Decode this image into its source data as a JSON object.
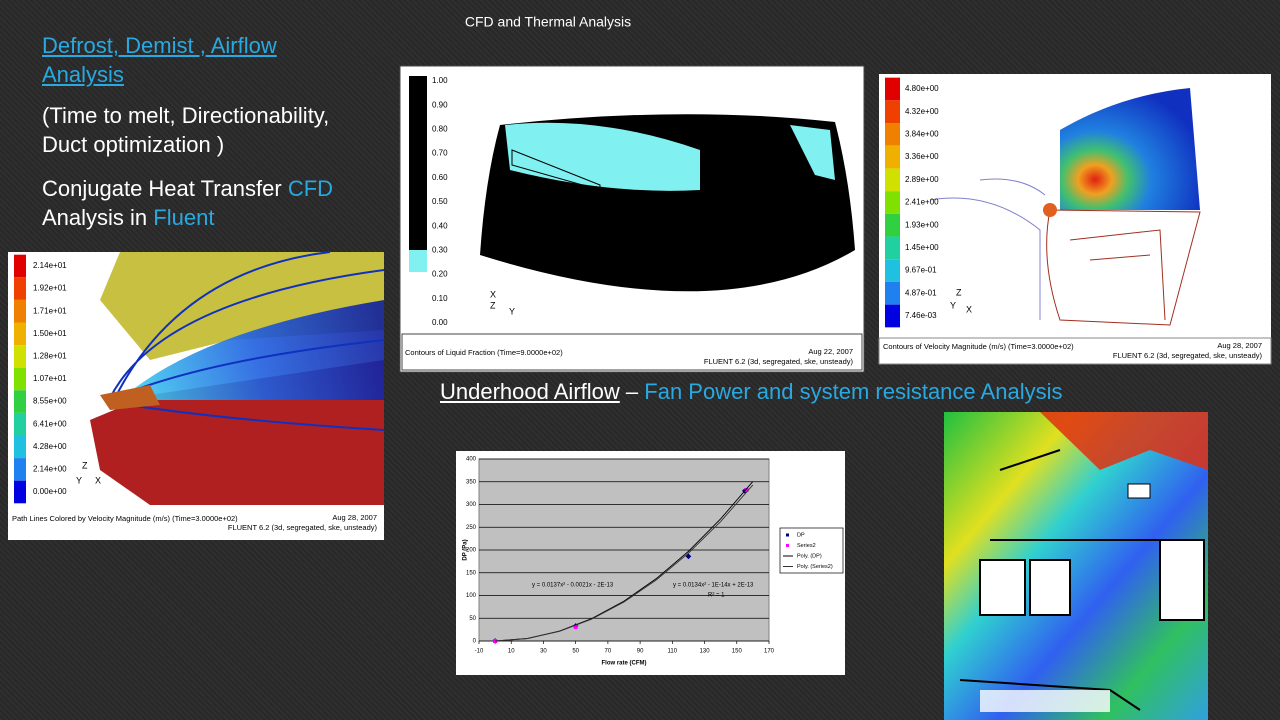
{
  "header": {
    "title": "CFD and Thermal Analysis"
  },
  "intro": {
    "heading": "Defrost, Demist , Airflow Analysis",
    "details": "(Time to melt, Directionability, Duct optimization )",
    "text1": "Conjugate Heat Transfer",
    "highlight1": "CFD",
    "text2": "Analysis in",
    "highlight2": "Fluent"
  },
  "underhood": {
    "link": "Underhood Airflow",
    "separator": "–",
    "description": "Fan Power and system resistance Analysis"
  },
  "figures": [
    {
      "legend": [
        "2.14e+01",
        "1.92e+01",
        "1.71e+01",
        "1.50e+01",
        "1.28e+01",
        "1.07e+01",
        "8.55e+00",
        "6.41e+00",
        "4.28e+00",
        "2.14e+00",
        "0.00e+00"
      ],
      "caption": "Path Lines Colored by Velocity Magnitude (m/s)  (Time=3.0000e+02)",
      "date": "Aug 28, 2007",
      "solver": "FLUENT 6.2 (3d, segregated, ske, unsteady)",
      "axes": [
        "Z",
        "Y",
        "X"
      ]
    },
    {
      "legend": [
        "1.00",
        "0.90",
        "0.80",
        "0.70",
        "0.60",
        "0.50",
        "0.40",
        "0.30",
        "0.20",
        "0.10",
        "0.00"
      ],
      "caption": "Contours of Liquid Fraction  (Time=9.0000e+02)",
      "date": "Aug 22, 2007",
      "solver": "FLUENT 6.2 (3d, segregated, ske, unsteady)",
      "axes": [
        "X",
        "Z",
        "Y"
      ]
    },
    {
      "legend": [
        "4.80e+00",
        "4.32e+00",
        "3.84e+00",
        "3.36e+00",
        "2.89e+00",
        "2.41e+00",
        "1.93e+00",
        "1.45e+00",
        "9.67e-01",
        "4.87e-01",
        "7.46e-03"
      ],
      "caption": "Contours of Velocity Magnitude (m/s)  (Time=3.0000e+02)",
      "date": "Aug 28, 2007",
      "solver": "FLUENT 6.2 (3d, segregated, ske, unsteady)",
      "axes": [
        "Z",
        "Y",
        "X"
      ]
    }
  ],
  "chart": {
    "type": "scatter",
    "xlabel": "Flow rate (CFM)",
    "ylabel": "DP (Pa)",
    "xlim": [
      -10,
      170
    ],
    "ylim": [
      0,
      400
    ],
    "xticks": [
      -10,
      10,
      30,
      50,
      70,
      90,
      110,
      130,
      150,
      170
    ],
    "yticks": [
      0,
      50,
      100,
      150,
      200,
      250,
      300,
      350,
      400
    ],
    "grid": true,
    "series": [
      {
        "name": "DP",
        "color": "#000080",
        "mode": "marker",
        "x": [
          0,
          50,
          120,
          155
        ],
        "values": [
          0,
          33,
          186,
          330
        ]
      },
      {
        "name": "Series2",
        "color": "#ff00ff",
        "mode": "marker",
        "x": [
          0,
          50,
          156
        ],
        "values": [
          0,
          31,
          332
        ]
      },
      {
        "name": "Poly. (DP)",
        "color": "#000000",
        "mode": "line",
        "x": [
          0,
          20,
          40,
          60,
          80,
          100,
          120,
          140,
          160
        ],
        "values": [
          0,
          5.5,
          21.9,
          49.3,
          87.7,
          137,
          197,
          268.5,
          350.7
        ]
      },
      {
        "name": "Poly. (Series2)",
        "color": "#333333",
        "mode": "line",
        "x": [
          0,
          20,
          40,
          60,
          80,
          100,
          120,
          140,
          160
        ],
        "values": [
          0,
          5.4,
          21.4,
          48.2,
          85.8,
          134,
          193,
          262.6,
          343
        ]
      }
    ],
    "annotations": [
      "y = 0.0137x² - 0.0021x - 2E-13",
      "y = 0.0134x² - 1E-14x + 2E-13",
      "R² = 1"
    ]
  }
}
